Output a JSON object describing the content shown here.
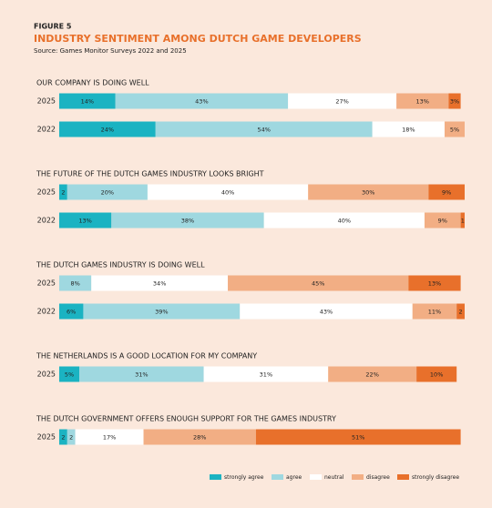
{
  "header": {
    "figure": "FIGURE 5",
    "title": "INDUSTRY SENTIMENT AMONG DUTCH GAME DEVELOPERS",
    "source": "Source: Games Monitor Surveys 2022 and 2025"
  },
  "chart_data": [
    {
      "type": "stacked_bar",
      "title": "OUR COMPANY IS DOING WELL",
      "categories": [
        "2025",
        "2022"
      ],
      "series": [
        {
          "name": "strongly agree",
          "color": "#1bb3c2",
          "values": [
            14,
            24
          ],
          "value_labels": [
            "14%",
            "24%"
          ]
        },
        {
          "name": "agree",
          "color": "#9fd8e0",
          "values": [
            43,
            54
          ],
          "value_labels": [
            "43%",
            "54%"
          ]
        },
        {
          "name": "neutral",
          "color": "#ffffff",
          "values": [
            27,
            18
          ],
          "value_labels": [
            "27%",
            "18%"
          ]
        },
        {
          "name": "disagree",
          "color": "#f2ae84",
          "values": [
            13,
            5
          ],
          "value_labels": [
            "13%",
            "5%"
          ]
        },
        {
          "name": "strongly disagree",
          "color": "#e8702b",
          "values": [
            3,
            null
          ],
          "value_labels": [
            "3%",
            null
          ]
        }
      ]
    },
    {
      "type": "stacked_bar",
      "title": "THE FUTURE OF THE DUTCH GAMES INDUSTRY LOOKS BRIGHT",
      "categories": [
        "2025",
        "2022"
      ],
      "series": [
        {
          "name": "strongly agree",
          "color": "#1bb3c2",
          "values": [
            2,
            13
          ],
          "value_labels": [
            "2",
            "13%"
          ]
        },
        {
          "name": "agree",
          "color": "#9fd8e0",
          "values": [
            20,
            38
          ],
          "value_labels": [
            "20%",
            "38%"
          ]
        },
        {
          "name": "neutral",
          "color": "#ffffff",
          "values": [
            40,
            40
          ],
          "value_labels": [
            "40%",
            "40%"
          ]
        },
        {
          "name": "disagree",
          "color": "#f2ae84",
          "values": [
            30,
            9
          ],
          "value_labels": [
            "30%",
            "9%"
          ]
        },
        {
          "name": "strongly disagree",
          "color": "#e8702b",
          "values": [
            9,
            1
          ],
          "value_labels": [
            "9%",
            "1"
          ]
        }
      ]
    },
    {
      "type": "stacked_bar",
      "title": "THE DUTCH GAMES INDUSTRY IS DOING WELL",
      "categories": [
        "2025",
        "2022"
      ],
      "series": [
        {
          "name": "strongly agree",
          "color": "#1bb3c2",
          "values": [
            null,
            6
          ],
          "value_labels": [
            null,
            "6%"
          ]
        },
        {
          "name": "agree",
          "color": "#9fd8e0",
          "values": [
            8,
            39
          ],
          "value_labels": [
            "8%",
            "39%"
          ]
        },
        {
          "name": "neutral",
          "color": "#ffffff",
          "values": [
            34,
            43
          ],
          "value_labels": [
            "34%",
            "43%"
          ]
        },
        {
          "name": "disagree",
          "color": "#f2ae84",
          "values": [
            45,
            11
          ],
          "value_labels": [
            "45%",
            "11%"
          ]
        },
        {
          "name": "strongly disagree",
          "color": "#e8702b",
          "values": [
            13,
            2
          ],
          "value_labels": [
            "13%",
            "2"
          ]
        }
      ]
    },
    {
      "type": "stacked_bar",
      "title": "THE NETHERLANDS IS A GOOD LOCATION FOR MY COMPANY",
      "categories": [
        "2025"
      ],
      "series": [
        {
          "name": "strongly agree",
          "color": "#1bb3c2",
          "values": [
            5
          ],
          "value_labels": [
            "5%"
          ]
        },
        {
          "name": "agree",
          "color": "#9fd8e0",
          "values": [
            31
          ],
          "value_labels": [
            "31%"
          ]
        },
        {
          "name": "neutral",
          "color": "#ffffff",
          "values": [
            31
          ],
          "value_labels": [
            "31%"
          ]
        },
        {
          "name": "disagree",
          "color": "#f2ae84",
          "values": [
            22
          ],
          "value_labels": [
            "22%"
          ]
        },
        {
          "name": "strongly disagree",
          "color": "#e8702b",
          "values": [
            10
          ],
          "value_labels": [
            "10%"
          ]
        }
      ]
    },
    {
      "type": "stacked_bar",
      "title": "THE DUTCH GOVERNMENT OFFERS ENOUGH SUPPORT FOR THE GAMES INDUSTRY",
      "categories": [
        "2025"
      ],
      "series": [
        {
          "name": "strongly agree",
          "color": "#1bb3c2",
          "values": [
            2
          ],
          "value_labels": [
            "2"
          ]
        },
        {
          "name": "agree",
          "color": "#9fd8e0",
          "values": [
            2
          ],
          "value_labels": [
            "2"
          ]
        },
        {
          "name": "neutral",
          "color": "#ffffff",
          "values": [
            17
          ],
          "value_labels": [
            "17%"
          ]
        },
        {
          "name": "disagree",
          "color": "#f2ae84",
          "values": [
            28
          ],
          "value_labels": [
            "28%"
          ]
        },
        {
          "name": "strongly disagree",
          "color": "#e8702b",
          "values": [
            51
          ],
          "value_labels": [
            "51%"
          ]
        }
      ]
    }
  ]
}
